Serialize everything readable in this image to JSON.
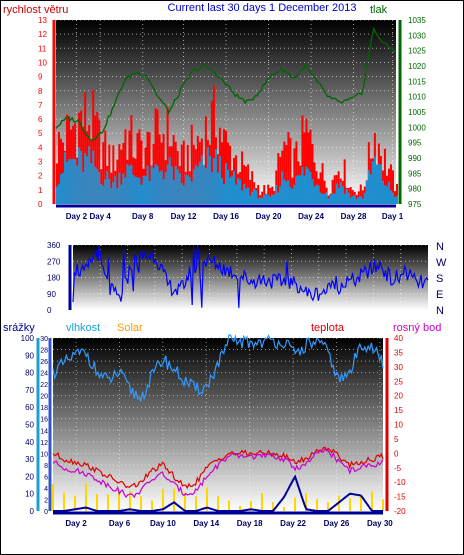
{
  "colors": {
    "wind_label": "#cc0000",
    "title": "#0000cc",
    "pressure": "#006600",
    "wind_max": "#ff0000",
    "wind_avg": "#1f8fd0",
    "direction": "#0000ff",
    "humidity": "#3399ff",
    "solar": "#ffd700",
    "temperature": "#dd0000",
    "dewpoint": "#cc00cc",
    "rain": "#000099",
    "rain_axis": "#1aa0d0",
    "solar_label": "#ff9900"
  },
  "charts": {
    "wind": {
      "title": "Current last 30 days 1 December 2013",
      "left_label": "rychlost větru",
      "right_label": "tlak",
      "left_ticks": [
        "0",
        "1",
        "2",
        "3",
        "4",
        "5",
        "6",
        "7",
        "8",
        "9",
        "10",
        "11",
        "12",
        "13"
      ],
      "right_ticks": [
        "975",
        "980",
        "985",
        "990",
        "995",
        "1000",
        "1005",
        "1010",
        "1015",
        "1020",
        "1025",
        "1030",
        "1035"
      ],
      "x_ticks": [
        "Day 2",
        "Day 4",
        "Day 8",
        "Day 12",
        "Day 16",
        "Day 20",
        "Day 24",
        "Day 28",
        "Day 1"
      ]
    },
    "direction": {
      "left_ticks": [
        "0",
        "90",
        "180",
        "270",
        "360"
      ],
      "compass": [
        "N",
        "W",
        "S",
        "E",
        "N"
      ]
    },
    "climate": {
      "rain_label": "srážky",
      "humidity_label": "vlhkost",
      "solar_label": "Solar",
      "temp_label": "teplota",
      "dew_label": "rosný bod",
      "rain_ticks": [
        "0",
        "10",
        "20",
        "30",
        "40",
        "50",
        "60",
        "70",
        "80",
        "90",
        "100"
      ],
      "hum_ticks": [
        "0",
        "2",
        "4",
        "6",
        "8",
        "10",
        "12",
        "14",
        "16",
        "18",
        "20",
        "22",
        "24",
        "26",
        "28",
        "30"
      ],
      "temp_ticks": [
        "-20",
        "-15",
        "-10",
        "-5",
        "0",
        "5",
        "10",
        "15",
        "20",
        "25",
        "30",
        "35",
        "40"
      ],
      "x_ticks": [
        "Day 2",
        "Day 6",
        "Day 10",
        "Day 14",
        "Day 18",
        "Day 22",
        "Day 26",
        "Day 30"
      ]
    }
  },
  "chart_data": [
    {
      "type": "line",
      "title": "Current last 30 days 1 December 2013",
      "xlabel": "",
      "ylabel": "rychlost větru",
      "ylim": [
        0,
        13
      ],
      "y2label": "tlak",
      "y2lim": [
        975,
        1035
      ],
      "x": [
        1,
        2,
        3,
        4,
        5,
        6,
        7,
        8,
        9,
        10,
        11,
        12,
        13,
        14,
        15,
        16,
        17,
        18,
        19,
        20,
        21,
        22,
        23,
        24,
        25,
        26,
        27,
        28,
        29,
        30,
        31
      ],
      "series": [
        {
          "values": [
            4,
            5,
            6,
            6,
            4,
            3,
            5,
            4,
            4,
            5,
            5,
            3,
            4,
            5,
            6,
            4,
            3,
            2,
            1,
            1,
            4,
            3,
            5,
            3,
            1,
            3,
            1,
            1,
            5,
            3,
            1
          ]
        },
        {
          "values": [
            2,
            3,
            3,
            3,
            2,
            1.5,
            2.5,
            2,
            2,
            2.5,
            2.5,
            1.5,
            2,
            3,
            3,
            2,
            1.5,
            1,
            0.5,
            0.5,
            2,
            1.5,
            2.5,
            1.5,
            0.5,
            1.5,
            0.5,
            0.5,
            3,
            1.5,
            0.5
          ]
        },
        {
          "values": [
            1000,
            1003,
            1002,
            996,
            998,
            1006,
            1015,
            1018,
            1017,
            1010,
            1005,
            1012,
            1018,
            1020,
            1018,
            1014,
            1010,
            1008,
            1012,
            1017,
            1019,
            1016,
            1020,
            1015,
            1010,
            1008,
            1009,
            1011,
            1032,
            1027,
            1025
          ]
        }
      ]
    },
    {
      "type": "line",
      "title": "",
      "ylim": [
        0,
        360
      ],
      "x": [
        1,
        2,
        3,
        4,
        5,
        6,
        7,
        8,
        9,
        10,
        11,
        12,
        13,
        14,
        15,
        16,
        17,
        18,
        19,
        20,
        21,
        22,
        23,
        24,
        25,
        26,
        27,
        28,
        29,
        30,
        31
      ],
      "series": [
        {
          "values": [
            240,
            200,
            330,
            120,
            60,
            260,
            300,
            300,
            140,
            100,
            220,
            270,
            260,
            220,
            200,
            160,
            170,
            160,
            150,
            140,
            80,
            100,
            120,
            150,
            170,
            220,
            250,
            160,
            220,
            150,
            150
          ]
        }
      ]
    },
    {
      "type": "line",
      "title": "",
      "ylim": [
        0,
        100
      ],
      "y2lim": [
        -20,
        40
      ],
      "x": [
        1,
        2,
        3,
        4,
        5,
        6,
        7,
        8,
        9,
        10,
        11,
        12,
        13,
        14,
        15,
        16,
        17,
        18,
        19,
        20,
        21,
        22,
        23,
        24,
        25,
        26,
        27,
        28,
        29,
        30,
        31
      ],
      "series": [
        {
          "values": [
            80,
            85,
            90,
            92,
            80,
            75,
            80,
            70,
            65,
            78,
            88,
            82,
            75,
            70,
            72,
            85,
            98,
            98,
            97,
            98,
            98,
            98,
            90,
            96,
            98,
            92,
            75,
            80,
            97,
            95,
            85
          ]
        },
        {
          "values": [
            0,
            -2,
            -3,
            -4,
            -6,
            -8,
            -10,
            -12,
            -10,
            -6,
            -4,
            -8,
            -12,
            -10,
            -5,
            -2,
            0,
            0,
            0,
            0,
            0,
            -1,
            -3,
            -2,
            1,
            2,
            -1,
            -4,
            -3,
            -2,
            -1
          ]
        },
        {
          "values": [
            -3,
            -5,
            -6,
            -7,
            -9,
            -11,
            -13,
            -15,
            -13,
            -9,
            -7,
            -11,
            -14,
            -13,
            -8,
            -4,
            -1,
            -1,
            -1,
            -1,
            -1,
            -2,
            -5,
            -4,
            0,
            1,
            -3,
            -6,
            -5,
            -4,
            -3
          ]
        },
        {
          "values": [
            0,
            0,
            1,
            2,
            0,
            0,
            0,
            1,
            0,
            0,
            1,
            5,
            0,
            0,
            2,
            0,
            0,
            0,
            1,
            0,
            0,
            8,
            20,
            1,
            0,
            0,
            5,
            10,
            9,
            0,
            0
          ]
        },
        {
          "values": [
            5,
            4,
            3,
            6,
            4,
            3,
            5,
            4,
            3,
            2,
            4,
            5,
            3,
            2,
            4,
            3,
            2,
            1,
            2,
            3,
            2,
            1,
            2,
            3,
            2,
            1,
            3,
            2,
            4,
            3,
            2
          ]
        }
      ]
    }
  ]
}
